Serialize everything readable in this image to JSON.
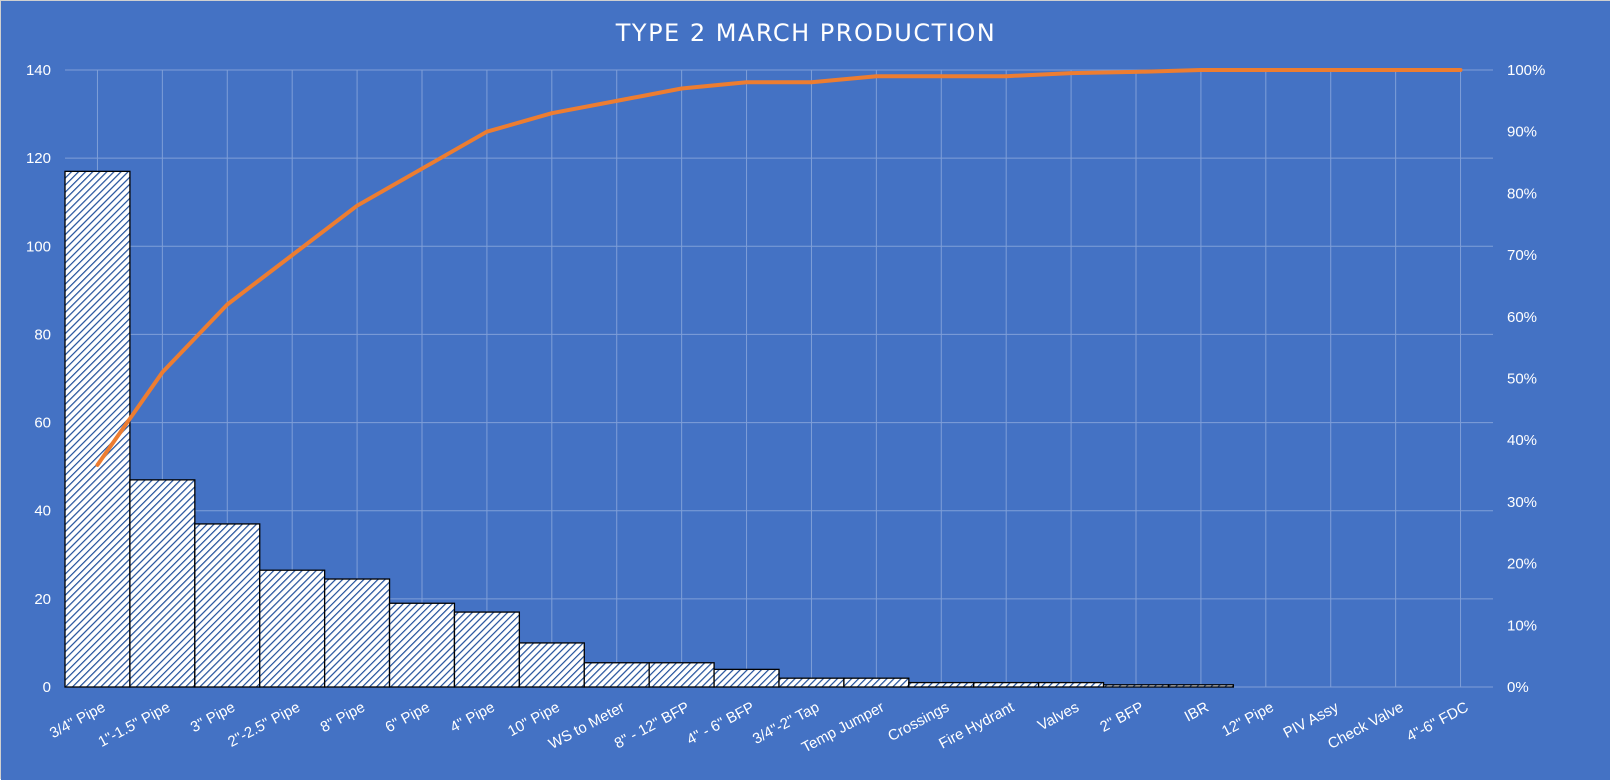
{
  "chart_data": {
    "type": "bar",
    "title": "TYPE 2 MARCH PRODUCTION",
    "xlabel": "",
    "ylabel": "",
    "categories": [
      "3/4\" Pipe",
      "1\"-1.5\" Pipe",
      "3\" Pipe",
      "2\"-2.5\" Pipe",
      "8\" Pipe",
      "6\" Pipe",
      "4\" Pipe",
      "10\" Pipe",
      "WS to Meter",
      "8\" - 12\" BFP",
      "4\" - 6\" BFP",
      "3/4\"-2\" Tap",
      "Temp Jumper",
      "Crossings",
      "Fire Hydrant",
      "Valves",
      "2\" BFP",
      "IBR",
      "12\" Pipe",
      "PIV Assy",
      "Check Valve",
      "4\"-6\" FDC"
    ],
    "ylim": [
      0,
      140
    ],
    "y_ticks": [
      "0",
      "20",
      "40",
      "60",
      "80",
      "100",
      "120",
      "140"
    ],
    "y2lim": [
      0,
      1
    ],
    "y2_ticks": [
      "0%",
      "10%",
      "20%",
      "30%",
      "40%",
      "50%",
      "60%",
      "70%",
      "80%",
      "90%",
      "100%"
    ],
    "grid": true,
    "legend": "none",
    "series": [
      {
        "type": "bar",
        "axis": "left",
        "pattern": "diagonal-hatch",
        "values": [
          117,
          47,
          37,
          26.5,
          24.5,
          19,
          17,
          10,
          5.5,
          5.5,
          4,
          2,
          2,
          1,
          1,
          1,
          0.5,
          0.5,
          0,
          0,
          0,
          0
        ]
      },
      {
        "type": "line",
        "axis": "right",
        "color": "#ED7D31",
        "values": [
          0.36,
          0.51,
          0.62,
          0.7,
          0.78,
          0.84,
          0.9,
          0.93,
          0.95,
          0.97,
          0.98,
          0.98,
          0.99,
          0.99,
          0.99,
          0.995,
          0.997,
          1.0,
          1.0,
          1.0,
          1.0,
          1.0
        ]
      }
    ],
    "colors": {
      "background": "#4472C4",
      "bar_fill": "#FFFFFF",
      "bar_hatch": "#1F4E9A",
      "bar_border": "#000000",
      "gridline": "#7F9FD8",
      "line": "#ED7D31",
      "text": "#FFFFFF"
    }
  }
}
